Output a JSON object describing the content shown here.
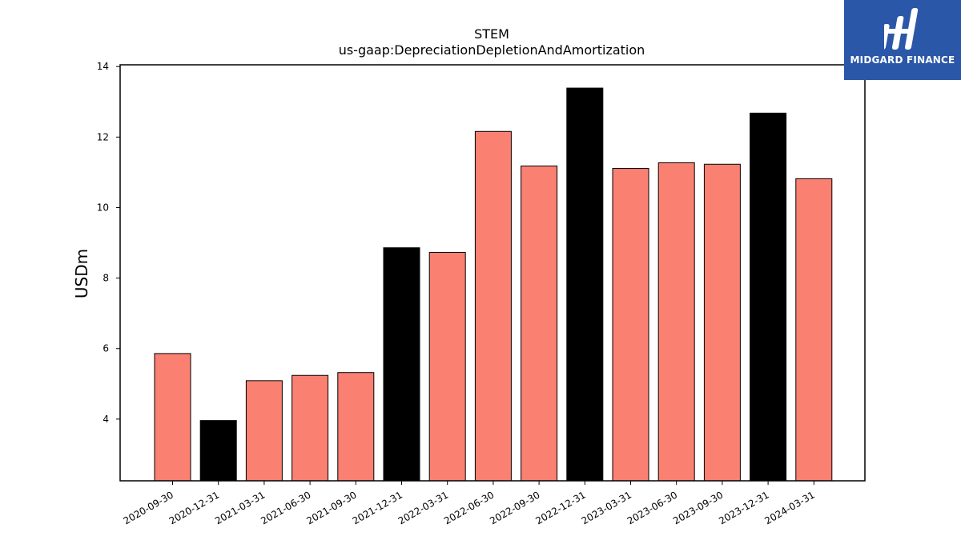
{
  "chart_data": {
    "type": "bar",
    "title": "STEM",
    "subtitle": "us-gaap:DepreciationDepletionAndAmortization",
    "xlabel": "",
    "ylabel": "USDm",
    "ylim": [
      2.25,
      14.05
    ],
    "yticks": [
      4,
      6,
      8,
      10,
      12,
      14
    ],
    "grid": false,
    "categories": [
      "2020-09-30",
      "2020-12-31",
      "2021-03-31",
      "2021-06-30",
      "2021-09-30",
      "2021-12-31",
      "2022-03-31",
      "2022-06-30",
      "2022-09-30",
      "2022-12-31",
      "2023-03-31",
      "2023-06-30",
      "2023-09-30",
      "2023-12-31",
      "2024-03-31"
    ],
    "values": [
      5.86,
      3.96,
      5.09,
      5.24,
      5.32,
      8.86,
      8.73,
      12.16,
      11.18,
      13.39,
      11.11,
      11.27,
      11.23,
      12.68,
      10.82
    ],
    "colors": [
      "#fa8072",
      "#000000",
      "#fa8072",
      "#fa8072",
      "#fa8072",
      "#000000",
      "#fa8072",
      "#fa8072",
      "#fa8072",
      "#000000",
      "#fa8072",
      "#fa8072",
      "#fa8072",
      "#000000",
      "#fa8072"
    ]
  },
  "logo": {
    "text": "MIDGARD FINANCE",
    "bg": "#2a57a8"
  }
}
